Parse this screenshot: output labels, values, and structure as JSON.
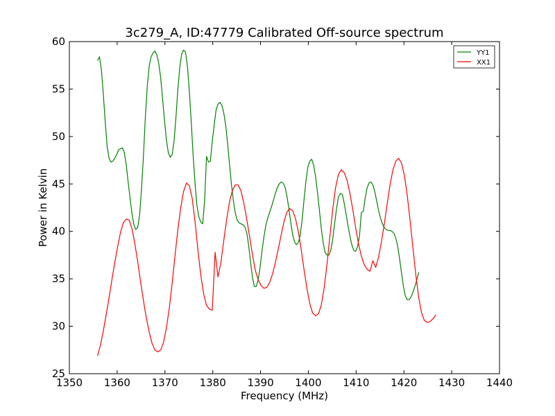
{
  "chart_data": {
    "type": "line",
    "title": "3c279_A, ID:47779 Calibrated Off-source spectrum",
    "xlabel": "Frequency (MHz)",
    "ylabel": "Power in Kelvin",
    "xlim": [
      1350,
      1440
    ],
    "ylim": [
      25,
      60
    ],
    "x_ticks": [
      1350,
      1360,
      1370,
      1380,
      1390,
      1400,
      1410,
      1420,
      1430,
      1440
    ],
    "y_ticks": [
      25,
      30,
      35,
      40,
      45,
      50,
      55,
      60
    ],
    "grid": false,
    "legend_position": "top-right",
    "series": [
      {
        "name": "YY1",
        "color": "#008000",
        "points": [
          [
            1355.9,
            58.0
          ],
          [
            1356.3,
            58.4
          ],
          [
            1356.7,
            57.0
          ],
          [
            1357.1,
            54.5
          ],
          [
            1357.5,
            51.5
          ],
          [
            1357.9,
            49.0
          ],
          [
            1358.3,
            47.7
          ],
          [
            1358.7,
            47.3
          ],
          [
            1359.1,
            47.4
          ],
          [
            1359.5,
            47.7
          ],
          [
            1359.9,
            48.1
          ],
          [
            1360.3,
            48.6
          ],
          [
            1360.7,
            48.7
          ],
          [
            1361.1,
            48.8
          ],
          [
            1361.5,
            48.3
          ],
          [
            1361.9,
            47.0
          ],
          [
            1362.3,
            45.2
          ],
          [
            1362.7,
            43.5
          ],
          [
            1363.1,
            41.9
          ],
          [
            1363.5,
            40.7
          ],
          [
            1363.9,
            40.2
          ],
          [
            1364.3,
            40.4
          ],
          [
            1364.7,
            41.8
          ],
          [
            1365.1,
            44.5
          ],
          [
            1365.5,
            48.0
          ],
          [
            1365.9,
            52.0
          ],
          [
            1366.3,
            55.3
          ],
          [
            1366.7,
            57.4
          ],
          [
            1367.1,
            58.4
          ],
          [
            1367.5,
            58.8
          ],
          [
            1367.9,
            59.0
          ],
          [
            1368.3,
            58.6
          ],
          [
            1368.7,
            57.7
          ],
          [
            1369.1,
            56.2
          ],
          [
            1369.5,
            54.0
          ],
          [
            1369.9,
            51.7
          ],
          [
            1370.3,
            49.7
          ],
          [
            1370.7,
            48.3
          ],
          [
            1371.1,
            47.8
          ],
          [
            1371.5,
            48.1
          ],
          [
            1371.9,
            49.5
          ],
          [
            1372.3,
            52.0
          ],
          [
            1372.7,
            55.0
          ],
          [
            1373.1,
            57.3
          ],
          [
            1373.5,
            58.7
          ],
          [
            1373.9,
            59.1
          ],
          [
            1374.3,
            58.9
          ],
          [
            1374.7,
            57.4
          ],
          [
            1375.1,
            54.8
          ],
          [
            1375.5,
            51.5
          ],
          [
            1375.9,
            48.0
          ],
          [
            1376.3,
            45.0
          ],
          [
            1376.7,
            42.7
          ],
          [
            1377.1,
            41.5
          ],
          [
            1377.5,
            41.0
          ],
          [
            1377.9,
            40.8
          ],
          [
            1378.3,
            43.3
          ],
          [
            1378.7,
            47.9
          ],
          [
            1379.1,
            47.3
          ],
          [
            1379.5,
            47.4
          ],
          [
            1379.9,
            49.5
          ],
          [
            1380.3,
            51.2
          ],
          [
            1380.7,
            52.8
          ],
          [
            1381.1,
            53.4
          ],
          [
            1381.5,
            53.6
          ],
          [
            1381.9,
            53.3
          ],
          [
            1382.3,
            52.5
          ],
          [
            1382.7,
            51.2
          ],
          [
            1383.1,
            49.3
          ],
          [
            1383.5,
            47.1
          ],
          [
            1383.9,
            45.0
          ],
          [
            1384.3,
            43.3
          ],
          [
            1384.7,
            42.0
          ],
          [
            1385.1,
            41.2
          ],
          [
            1385.5,
            40.9
          ],
          [
            1385.9,
            40.8
          ],
          [
            1386.3,
            40.7
          ],
          [
            1386.7,
            40.5
          ],
          [
            1387.1,
            39.9
          ],
          [
            1387.5,
            38.6
          ],
          [
            1387.9,
            36.8
          ],
          [
            1388.3,
            35.2
          ],
          [
            1388.7,
            34.2
          ],
          [
            1389.1,
            34.2
          ],
          [
            1389.5,
            34.9
          ],
          [
            1389.9,
            36.2
          ],
          [
            1390.3,
            37.9
          ],
          [
            1390.7,
            39.4
          ],
          [
            1391.1,
            40.6
          ],
          [
            1391.5,
            41.4
          ],
          [
            1391.9,
            42.0
          ],
          [
            1392.3,
            42.6
          ],
          [
            1392.7,
            43.3
          ],
          [
            1393.1,
            44.0
          ],
          [
            1393.5,
            44.6
          ],
          [
            1393.9,
            45.0
          ],
          [
            1394.3,
            45.2
          ],
          [
            1394.7,
            45.1
          ],
          [
            1395.1,
            44.7
          ],
          [
            1395.5,
            43.8
          ],
          [
            1395.9,
            42.5
          ],
          [
            1396.3,
            41.0
          ],
          [
            1396.7,
            39.7
          ],
          [
            1397.1,
            38.9
          ],
          [
            1397.5,
            38.6
          ],
          [
            1397.9,
            38.8
          ],
          [
            1398.3,
            39.6
          ],
          [
            1398.7,
            41.2
          ],
          [
            1399.1,
            43.3
          ],
          [
            1399.5,
            45.3
          ],
          [
            1399.9,
            46.8
          ],
          [
            1400.3,
            47.4
          ],
          [
            1400.7,
            47.6
          ],
          [
            1401.1,
            47.0
          ],
          [
            1401.5,
            45.8
          ],
          [
            1401.9,
            44.2
          ],
          [
            1402.3,
            42.3
          ],
          [
            1402.7,
            40.4
          ],
          [
            1403.1,
            38.8
          ],
          [
            1403.5,
            37.8
          ],
          [
            1403.9,
            37.5
          ],
          [
            1404.3,
            37.5
          ],
          [
            1404.7,
            38.0
          ],
          [
            1405.1,
            39.2
          ],
          [
            1405.5,
            40.8
          ],
          [
            1405.9,
            42.4
          ],
          [
            1406.3,
            43.6
          ],
          [
            1406.7,
            44.0
          ],
          [
            1407.1,
            43.9
          ],
          [
            1407.5,
            43.0
          ],
          [
            1407.9,
            41.8
          ],
          [
            1408.3,
            40.6
          ],
          [
            1408.7,
            39.5
          ],
          [
            1409.1,
            38.6
          ],
          [
            1409.5,
            38.0
          ],
          [
            1409.9,
            37.9
          ],
          [
            1410.3,
            38.4
          ],
          [
            1410.7,
            39.5
          ],
          [
            1411.1,
            42.0
          ],
          [
            1411.5,
            42.1
          ],
          [
            1411.9,
            43.5
          ],
          [
            1412.3,
            44.6
          ],
          [
            1412.7,
            45.1
          ],
          [
            1413.1,
            45.2
          ],
          [
            1413.5,
            44.9
          ],
          [
            1413.9,
            44.2
          ],
          [
            1414.3,
            43.2
          ],
          [
            1414.7,
            42.2
          ],
          [
            1415.1,
            41.4
          ],
          [
            1415.5,
            40.8
          ],
          [
            1415.9,
            40.4
          ],
          [
            1416.3,
            40.2
          ],
          [
            1416.7,
            40.1
          ],
          [
            1417.1,
            40.1
          ],
          [
            1417.5,
            40.0
          ],
          [
            1417.9,
            39.8
          ],
          [
            1418.3,
            39.3
          ],
          [
            1418.7,
            38.4
          ],
          [
            1419.1,
            37.1
          ],
          [
            1419.5,
            35.6
          ],
          [
            1419.9,
            34.2
          ],
          [
            1420.3,
            33.2
          ],
          [
            1420.7,
            32.8
          ],
          [
            1421.1,
            32.8
          ],
          [
            1421.5,
            33.1
          ],
          [
            1421.9,
            33.6
          ],
          [
            1422.3,
            34.2
          ],
          [
            1422.7,
            34.9
          ],
          [
            1423.1,
            35.7
          ]
        ]
      },
      {
        "name": "XX1",
        "color": "#ff0000",
        "points": [
          [
            1355.9,
            26.9
          ],
          [
            1356.5,
            28.0
          ],
          [
            1357.1,
            29.5
          ],
          [
            1357.7,
            31.2
          ],
          [
            1358.3,
            33.0
          ],
          [
            1358.9,
            34.9
          ],
          [
            1359.5,
            36.7
          ],
          [
            1360.1,
            38.4
          ],
          [
            1360.7,
            39.9
          ],
          [
            1361.3,
            40.9
          ],
          [
            1361.9,
            41.3
          ],
          [
            1362.5,
            41.2
          ],
          [
            1363.1,
            40.3
          ],
          [
            1363.7,
            38.7
          ],
          [
            1364.3,
            36.8
          ],
          [
            1364.9,
            34.7
          ],
          [
            1365.5,
            32.7
          ],
          [
            1366.1,
            30.9
          ],
          [
            1366.7,
            29.4
          ],
          [
            1367.3,
            28.2
          ],
          [
            1367.9,
            27.5
          ],
          [
            1368.5,
            27.3
          ],
          [
            1369.1,
            27.5
          ],
          [
            1369.7,
            28.3
          ],
          [
            1370.3,
            29.8
          ],
          [
            1370.9,
            31.9
          ],
          [
            1371.5,
            34.5
          ],
          [
            1372.1,
            37.4
          ],
          [
            1372.7,
            40.2
          ],
          [
            1373.3,
            42.5
          ],
          [
            1373.9,
            44.2
          ],
          [
            1374.5,
            45.1
          ],
          [
            1375.1,
            44.8
          ],
          [
            1375.7,
            43.5
          ],
          [
            1376.3,
            41.0
          ],
          [
            1376.9,
            38.0
          ],
          [
            1377.5,
            35.4
          ],
          [
            1378.1,
            33.4
          ],
          [
            1378.7,
            32.2
          ],
          [
            1379.3,
            31.8
          ],
          [
            1379.9,
            31.7
          ],
          [
            1380.5,
            37.8
          ],
          [
            1381.1,
            35.2
          ],
          [
            1381.7,
            36.7
          ],
          [
            1382.3,
            39.0
          ],
          [
            1382.9,
            41.2
          ],
          [
            1383.5,
            43.1
          ],
          [
            1384.1,
            44.3
          ],
          [
            1384.7,
            44.9
          ],
          [
            1385.3,
            44.9
          ],
          [
            1385.9,
            44.3
          ],
          [
            1386.5,
            43.0
          ],
          [
            1387.1,
            41.3
          ],
          [
            1387.7,
            39.5
          ],
          [
            1388.3,
            37.6
          ],
          [
            1388.9,
            35.9
          ],
          [
            1389.5,
            34.9
          ],
          [
            1390.1,
            34.3
          ],
          [
            1390.7,
            34.0
          ],
          [
            1391.3,
            34.1
          ],
          [
            1391.9,
            34.6
          ],
          [
            1392.5,
            35.5
          ],
          [
            1393.1,
            36.7
          ],
          [
            1393.7,
            38.1
          ],
          [
            1394.3,
            39.6
          ],
          [
            1394.9,
            41.0
          ],
          [
            1395.5,
            42.0
          ],
          [
            1396.1,
            42.4
          ],
          [
            1396.7,
            42.2
          ],
          [
            1397.3,
            41.4
          ],
          [
            1397.9,
            40.0
          ],
          [
            1398.5,
            38.1
          ],
          [
            1399.1,
            36.0
          ],
          [
            1399.7,
            34.0
          ],
          [
            1400.3,
            32.4
          ],
          [
            1400.9,
            31.4
          ],
          [
            1401.5,
            31.1
          ],
          [
            1402.1,
            31.3
          ],
          [
            1402.7,
            32.2
          ],
          [
            1403.3,
            34.0
          ],
          [
            1403.9,
            36.5
          ],
          [
            1404.5,
            39.4
          ],
          [
            1405.1,
            42.3
          ],
          [
            1405.7,
            44.6
          ],
          [
            1406.3,
            46.0
          ],
          [
            1406.9,
            46.5
          ],
          [
            1407.5,
            46.2
          ],
          [
            1408.1,
            45.4
          ],
          [
            1408.7,
            44.0
          ],
          [
            1409.3,
            42.3
          ],
          [
            1409.9,
            40.4
          ],
          [
            1410.5,
            38.7
          ],
          [
            1411.1,
            37.4
          ],
          [
            1411.7,
            36.5
          ],
          [
            1412.3,
            36.0
          ],
          [
            1412.9,
            35.8
          ],
          [
            1413.5,
            36.9
          ],
          [
            1414.1,
            36.2
          ],
          [
            1414.7,
            37.3
          ],
          [
            1415.3,
            38.9
          ],
          [
            1415.9,
            40.8
          ],
          [
            1416.5,
            42.9
          ],
          [
            1417.1,
            44.9
          ],
          [
            1417.7,
            46.5
          ],
          [
            1418.3,
            47.4
          ],
          [
            1418.9,
            47.7
          ],
          [
            1419.5,
            47.2
          ],
          [
            1420.1,
            45.9
          ],
          [
            1420.7,
            43.8
          ],
          [
            1421.3,
            41.1
          ],
          [
            1421.9,
            38.2
          ],
          [
            1422.5,
            35.4
          ],
          [
            1423.1,
            33.0
          ],
          [
            1423.7,
            31.4
          ],
          [
            1424.3,
            30.6
          ],
          [
            1424.9,
            30.4
          ],
          [
            1425.5,
            30.5
          ],
          [
            1426.1,
            30.8
          ],
          [
            1426.7,
            31.2
          ]
        ]
      }
    ]
  }
}
